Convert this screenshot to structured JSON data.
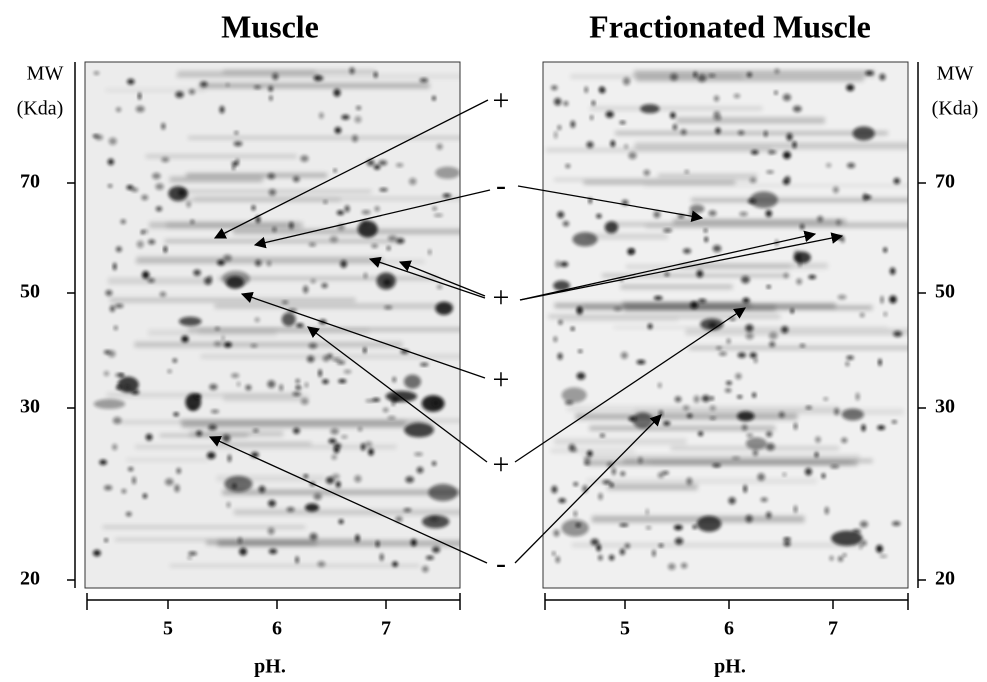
{
  "panels": [
    {
      "title": "Muscle",
      "mw_label": "MW",
      "unit_label": "(Kda)",
      "mw_ticks": [
        70,
        50,
        30,
        20
      ],
      "ph_ticks": [
        5,
        6,
        7
      ],
      "x_label": "pH."
    },
    {
      "title": "Fractionated Muscle",
      "mw_label": "MW",
      "unit_label": "(Kda)",
      "mw_ticks": [
        70,
        50,
        30,
        20
      ],
      "ph_ticks": [
        5,
        6,
        7
      ],
      "x_label": "pH."
    }
  ],
  "annotations": [
    "+",
    "-",
    "+",
    "+",
    "+",
    "-"
  ]
}
